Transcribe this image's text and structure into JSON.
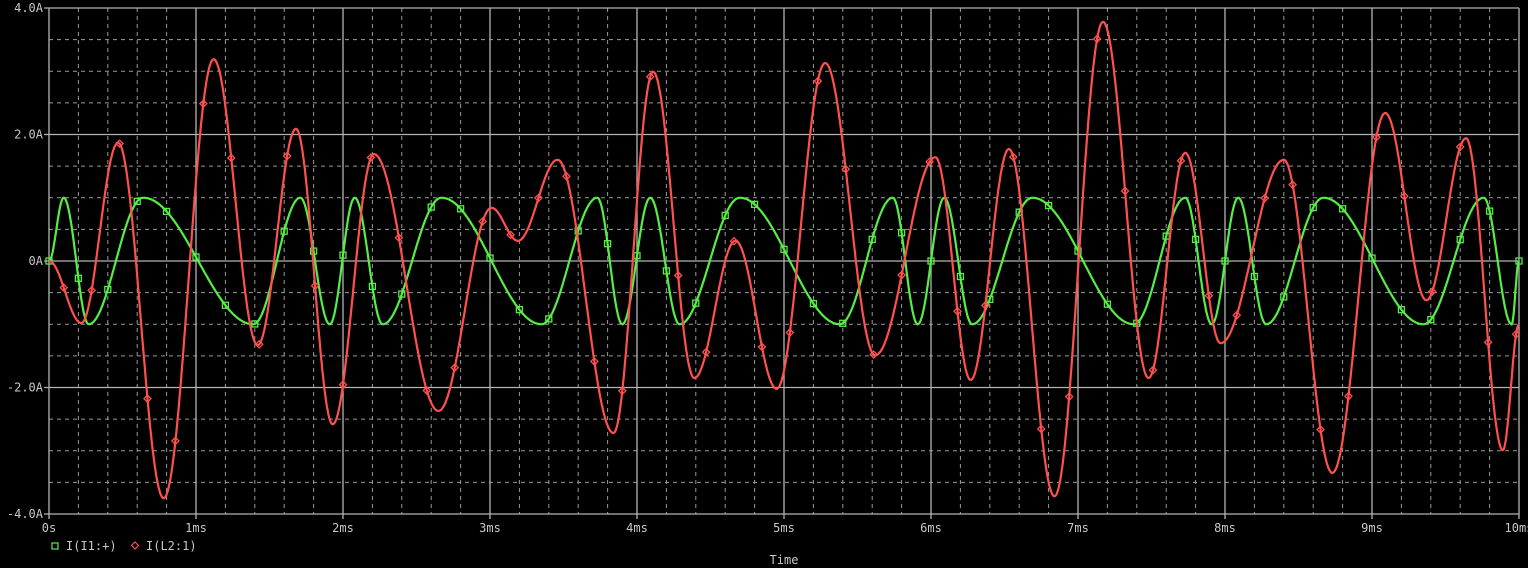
{
  "chart_data": {
    "type": "line",
    "xlabel": "Time",
    "ylabel": "",
    "xlim": [
      0,
      10
    ],
    "ylim": [
      -4,
      4
    ],
    "x_unit": "ms",
    "grid": true,
    "background_color": "#000000",
    "x_ticks": [
      {
        "v": 0,
        "label": "0s"
      },
      {
        "v": 1,
        "label": "1ms"
      },
      {
        "v": 2,
        "label": "2ms"
      },
      {
        "v": 3,
        "label": "3ms"
      },
      {
        "v": 4,
        "label": "4ms"
      },
      {
        "v": 5,
        "label": "5ms"
      },
      {
        "v": 6,
        "label": "6ms"
      },
      {
        "v": 7,
        "label": "7ms"
      },
      {
        "v": 8,
        "label": "8ms"
      },
      {
        "v": 9,
        "label": "9ms"
      },
      {
        "v": 10,
        "label": "10ms"
      }
    ],
    "y_ticks": [
      {
        "v": 4,
        "label": "4.0A"
      },
      {
        "v": 2,
        "label": "2.0A"
      },
      {
        "v": 0,
        "label": "0A"
      },
      {
        "v": -2,
        "label": "-2.0A"
      },
      {
        "v": -4,
        "label": "-4.0A"
      }
    ],
    "legend_placement": "bottom-left",
    "series": [
      {
        "name": "I(I1:+)",
        "color": "#55ee44",
        "marker": "square",
        "points": [
          [
            0,
            0
          ],
          [
            0.1,
            1
          ],
          [
            0.27,
            -1
          ],
          [
            0.64,
            1
          ],
          [
            1.39,
            -1
          ],
          [
            1.71,
            1
          ],
          [
            1.91,
            -1
          ],
          [
            2.08,
            1
          ],
          [
            2.27,
            -1
          ],
          [
            2.67,
            1
          ],
          [
            3.35,
            -1
          ],
          [
            3.73,
            1
          ],
          [
            3.9,
            -1
          ],
          [
            4.09,
            1
          ],
          [
            4.29,
            -1
          ],
          [
            4.7,
            1
          ],
          [
            5.38,
            -1
          ],
          [
            5.74,
            1
          ],
          [
            5.91,
            -1
          ],
          [
            6.09,
            1
          ],
          [
            6.28,
            -1
          ],
          [
            6.69,
            1
          ],
          [
            7.38,
            -1
          ],
          [
            7.73,
            1
          ],
          [
            7.91,
            -1
          ],
          [
            8.09,
            1
          ],
          [
            8.28,
            -1
          ],
          [
            8.67,
            1
          ],
          [
            9.35,
            -1
          ],
          [
            9.76,
            1
          ],
          [
            9.95,
            -1
          ],
          [
            10,
            0
          ]
        ]
      },
      {
        "name": "I(L2:1)",
        "color": "#ff5050",
        "marker": "diamond",
        "points": [
          [
            0,
            0
          ],
          [
            0.22,
            -0.98
          ],
          [
            0.47,
            1.87
          ],
          [
            0.78,
            -3.75
          ],
          [
            1.12,
            3.19
          ],
          [
            1.42,
            -1.33
          ],
          [
            1.68,
            2.09
          ],
          [
            1.93,
            -2.58
          ],
          [
            2.21,
            1.69
          ],
          [
            2.65,
            -2.37
          ],
          [
            3.01,
            0.84
          ],
          [
            3.19,
            0.32
          ],
          [
            3.46,
            1.6
          ],
          [
            3.84,
            -2.72
          ],
          [
            4.11,
            2.99
          ],
          [
            4.39,
            -1.85
          ],
          [
            4.67,
            0.32
          ],
          [
            4.95,
            -2.02
          ],
          [
            5.28,
            3.13
          ],
          [
            5.62,
            -1.49
          ],
          [
            6.03,
            1.64
          ],
          [
            6.27,
            -1.88
          ],
          [
            6.53,
            1.77
          ],
          [
            6.84,
            -3.72
          ],
          [
            7.17,
            3.78
          ],
          [
            7.48,
            -1.85
          ],
          [
            7.73,
            1.71
          ],
          [
            7.97,
            -1.3
          ],
          [
            8.4,
            1.6
          ],
          [
            8.73,
            -3.35
          ],
          [
            9.09,
            2.34
          ],
          [
            9.37,
            -0.62
          ],
          [
            9.64,
            1.94
          ],
          [
            9.89,
            -2.99
          ],
          [
            10,
            -1.0
          ]
        ]
      }
    ]
  }
}
